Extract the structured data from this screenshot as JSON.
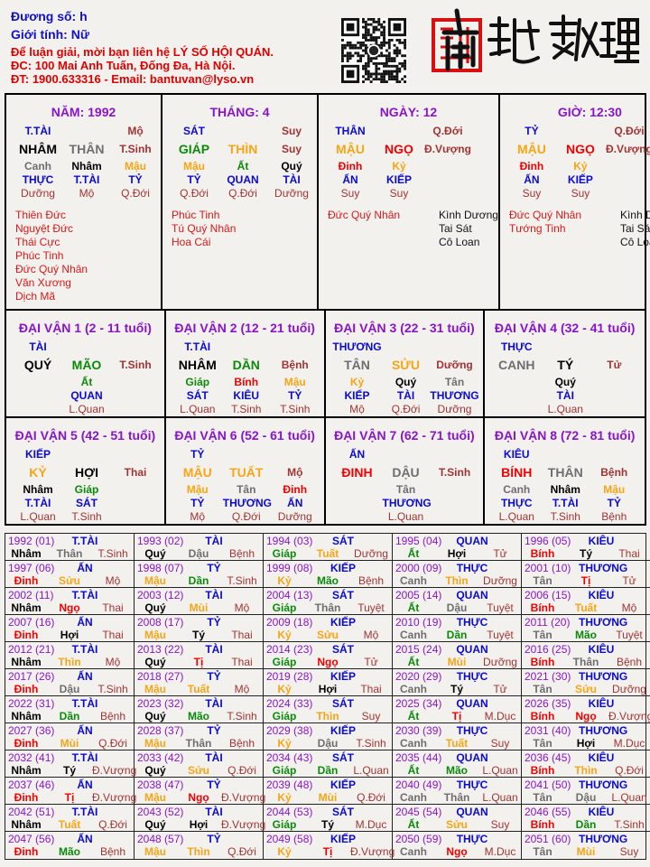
{
  "header": {
    "name_line": "Đương số: h",
    "gender_line": "Giới tính:   Nữ",
    "contact_line1": "Để luận giải, mời bạn liên hệ LÝ SỐ HỘI QUÁN.",
    "contact_line2": "ĐC: 100 Mai Anh Tuấn, Đống Đa, Hà Nội.",
    "contact_line3": "ĐT: 1900.633316 - Email: bantuvan@lyso.vn",
    "logo_text": "南越數理",
    "qr_icon": "qr-code"
  },
  "colors": {
    "title": "#8a14c8",
    "god": "#0a0ad0",
    "state": "#a03434",
    "star_good": "#d81818",
    "star_bad": "#111111"
  },
  "element_of": {
    "Giáp": "wood",
    "Ất": "wood",
    "Dần": "wood",
    "Mão": "wood",
    "Bính": "fire",
    "Đinh": "fire",
    "Tị": "fire",
    "Ngọ": "fire",
    "Mậu": "earth",
    "Kỷ": "earth",
    "Thìn": "earth",
    "Tuất": "earth",
    "Sửu": "earth",
    "Mùi": "earth",
    "Canh": "metal",
    "Tân": "metal",
    "Thân": "metal",
    "Dậu": "metal",
    "Nhâm": "water",
    "Quý": "water",
    "Tý": "water",
    "Hợi": "water"
  },
  "element_colors": {
    "wood": "#0a8a0a",
    "fire": "#f00000",
    "earth": "#f5a516",
    "metal": "#6e6e6e",
    "water": "#000000"
  },
  "pillars": [
    {
      "title": "NĂM: 1992",
      "top_god": "T.TÀI",
      "top_state": "Mộ",
      "stem": "NHÂM",
      "branch": "THÂN",
      "state": "T.Sinh",
      "hidden": [
        {
          "stem": "Canh",
          "god": "THỰC",
          "state": "Dưỡng"
        },
        {
          "stem": "Nhâm",
          "god": "T.TÀI",
          "state": "Mộ"
        },
        {
          "stem": "Mậu",
          "god": "TỶ",
          "state": "Q.Đới"
        }
      ],
      "stars_good": [
        "Thiên Đức",
        "Nguyệt Đức",
        "Thái Cực",
        "Phúc Tinh",
        "Đức Quý Nhân",
        "Văn Xương",
        "Dịch Mã"
      ],
      "stars_bad": []
    },
    {
      "title": "THÁNG: 4",
      "top_god": "SÁT",
      "top_state": "Suy",
      "stem": "GIÁP",
      "branch": "THÌN",
      "state": "Suy",
      "hidden": [
        {
          "stem": "Mậu",
          "god": "TỶ",
          "state": "Q.Đới"
        },
        {
          "stem": "Ất",
          "god": "QUAN",
          "state": "Q.Đới"
        },
        {
          "stem": "Quý",
          "god": "TÀI",
          "state": "Dưỡng"
        }
      ],
      "stars_good": [
        "Phúc Tinh",
        "Tú Quý Nhân",
        "Hoa Cái"
      ],
      "stars_bad": []
    },
    {
      "title": "NGÀY: 12",
      "top_god": "THÂN",
      "top_state": "Q.Đới",
      "stem": "MẬU",
      "branch": "NGỌ",
      "state": "Đ.Vượng",
      "hidden": [
        {
          "stem": "Đinh",
          "god": "ẤN",
          "state": "Suy"
        },
        {
          "stem": "Kỷ",
          "god": "KIẾP",
          "state": "Suy"
        },
        null
      ],
      "stars_good": [
        "Đức Quý Nhân"
      ],
      "stars_bad": [
        "Kình Dương",
        "Tai Sát",
        "Cô Loan"
      ]
    },
    {
      "title": "GIỜ: 12:30",
      "top_god": "TỶ",
      "top_state": "Q.Đới",
      "stem": "MẬU",
      "branch": "NGỌ",
      "state": "Đ.Vượng",
      "hidden": [
        {
          "stem": "Đinh",
          "god": "ẤN",
          "state": "Suy"
        },
        {
          "stem": "Kỷ",
          "god": "KIẾP",
          "state": "Suy"
        },
        null
      ],
      "stars_good": [
        "Đức Quý Nhân",
        "Tướng Tinh"
      ],
      "stars_bad": [
        "Kình Dương",
        "Tai Sát",
        "Cô Loan"
      ]
    }
  ],
  "dai_van": [
    {
      "title": "ĐẠI VẬN 1 (2 - 11 tuổi)",
      "top_god": "TÀI",
      "stem": "QUÝ",
      "branch": "MÃO",
      "state": "T.Sinh",
      "hidden": [
        null,
        {
          "stem": "Ất",
          "god": "QUAN",
          "state": "L.Quan"
        },
        null
      ]
    },
    {
      "title": "ĐẠI VẬN 2 (12 - 21 tuổi)",
      "top_god": "T.TÀI",
      "stem": "NHÂM",
      "branch": "DẦN",
      "state": "Bệnh",
      "hidden": [
        {
          "stem": "Giáp",
          "god": "SÁT",
          "state": "L.Quan"
        },
        {
          "stem": "Bính",
          "god": "KIÊU",
          "state": "T.Sinh"
        },
        {
          "stem": "Mậu",
          "god": "TỶ",
          "state": "T.Sinh"
        }
      ]
    },
    {
      "title": "ĐẠI VẬN 3 (22 - 31 tuổi)",
      "top_god": "THƯƠNG",
      "stem": "TÂN",
      "branch": "SỬU",
      "state": "Dưỡng",
      "hidden": [
        {
          "stem": "Kỷ",
          "god": "KIẾP",
          "state": "Mộ"
        },
        {
          "stem": "Quý",
          "god": "TÀI",
          "state": "Q.Đới"
        },
        {
          "stem": "Tân",
          "god": "THƯƠNG",
          "state": "Dưỡng"
        }
      ]
    },
    {
      "title": "ĐẠI VẬN 4 (32 - 41 tuổi)",
      "top_god": "THỰC",
      "stem": "CANH",
      "branch": "TÝ",
      "state": "Tử",
      "hidden": [
        null,
        {
          "stem": "Quý",
          "god": "TÀI",
          "state": "L.Quan"
        },
        null
      ]
    },
    {
      "title": "ĐẠI VẬN 5 (42 - 51 tuổi)",
      "top_god": "KIẾP",
      "stem": "KỶ",
      "branch": "HỢI",
      "state": "Thai",
      "hidden": [
        {
          "stem": "Nhâm",
          "god": "T.TÀI",
          "state": "L.Quan"
        },
        {
          "stem": "Giáp",
          "god": "SÁT",
          "state": "T.Sinh"
        },
        null
      ]
    },
    {
      "title": "ĐẠI VẬN 6 (52 - 61 tuổi)",
      "top_god": "TỶ",
      "stem": "MẬU",
      "branch": "TUẤT",
      "state": "Mộ",
      "hidden": [
        {
          "stem": "Mậu",
          "god": "TỶ",
          "state": "Mộ"
        },
        {
          "stem": "Tân",
          "god": "THƯƠNG",
          "state": "Q.Đới"
        },
        {
          "stem": "Đinh",
          "god": "ẤN",
          "state": "Dưỡng"
        }
      ]
    },
    {
      "title": "ĐẠI VẬN 7 (62 - 71 tuổi)",
      "top_god": "ẤN",
      "stem": "ĐINH",
      "branch": "DẬU",
      "state": "T.Sinh",
      "hidden": [
        null,
        {
          "stem": "Tân",
          "god": "THƯƠNG",
          "state": "L.Quan"
        },
        null
      ]
    },
    {
      "title": "ĐẠI VẬN 8 (72 - 81 tuổi)",
      "top_god": "KIÊU",
      "stem": "BÍNH",
      "branch": "THÂN",
      "state": "Bệnh",
      "hidden": [
        {
          "stem": "Canh",
          "god": "THỰC",
          "state": "L.Quan"
        },
        {
          "stem": "Nhâm",
          "god": "T.TÀI",
          "state": "T.Sinh"
        },
        {
          "stem": "Mậu",
          "god": "TỶ",
          "state": "Bệnh"
        }
      ]
    }
  ],
  "years": [
    {
      "y": "1992 (01)",
      "g": "T.TÀI",
      "s": "Nhâm",
      "b": "Thân",
      "st": "T.Sinh"
    },
    {
      "y": "1993 (02)",
      "g": "TÀI",
      "s": "Quý",
      "b": "Dậu",
      "st": "Bệnh"
    },
    {
      "y": "1994 (03)",
      "g": "SÁT",
      "s": "Giáp",
      "b": "Tuất",
      "st": "Dưỡng"
    },
    {
      "y": "1995 (04)",
      "g": "QUAN",
      "s": "Ất",
      "b": "Hợi",
      "st": "Tử"
    },
    {
      "y": "1996 (05)",
      "g": "KIÊU",
      "s": "Bính",
      "b": "Tý",
      "st": "Thai"
    },
    {
      "y": "1997 (06)",
      "g": "ẤN",
      "s": "Đinh",
      "b": "Sửu",
      "st": "Mộ"
    },
    {
      "y": "1998 (07)",
      "g": "TỶ",
      "s": "Mậu",
      "b": "Dần",
      "st": "T.Sinh"
    },
    {
      "y": "1999 (08)",
      "g": "KIẾP",
      "s": "Kỷ",
      "b": "Mão",
      "st": "Bệnh"
    },
    {
      "y": "2000 (09)",
      "g": "THỰC",
      "s": "Canh",
      "b": "Thìn",
      "st": "Dưỡng"
    },
    {
      "y": "2001 (10)",
      "g": "THƯƠNG",
      "s": "Tân",
      "b": "Tị",
      "st": "Tử"
    },
    {
      "y": "2002 (11)",
      "g": "T.TÀI",
      "s": "Nhâm",
      "b": "Ngọ",
      "st": "Thai"
    },
    {
      "y": "2003 (12)",
      "g": "TÀI",
      "s": "Quý",
      "b": "Mùi",
      "st": "Mộ"
    },
    {
      "y": "2004 (13)",
      "g": "SÁT",
      "s": "Giáp",
      "b": "Thân",
      "st": "Tuyệt"
    },
    {
      "y": "2005 (14)",
      "g": "QUAN",
      "s": "Ất",
      "b": "Dậu",
      "st": "Tuyệt"
    },
    {
      "y": "2006 (15)",
      "g": "KIÊU",
      "s": "Bính",
      "b": "Tuất",
      "st": "Mộ"
    },
    {
      "y": "2007 (16)",
      "g": "ẤN",
      "s": "Đinh",
      "b": "Hợi",
      "st": "Thai"
    },
    {
      "y": "2008 (17)",
      "g": "TỶ",
      "s": "Mậu",
      "b": "Tý",
      "st": "Thai"
    },
    {
      "y": "2009 (18)",
      "g": "KIẾP",
      "s": "Kỷ",
      "b": "Sửu",
      "st": "Mộ"
    },
    {
      "y": "2010 (19)",
      "g": "THỰC",
      "s": "Canh",
      "b": "Dần",
      "st": "Tuyệt"
    },
    {
      "y": "2011 (20)",
      "g": "THƯƠNG",
      "s": "Tân",
      "b": "Mão",
      "st": "Tuyệt"
    },
    {
      "y": "2012 (21)",
      "g": "T.TÀI",
      "s": "Nhâm",
      "b": "Thìn",
      "st": "Mộ"
    },
    {
      "y": "2013 (22)",
      "g": "TÀI",
      "s": "Quý",
      "b": "Tị",
      "st": "Thai"
    },
    {
      "y": "2014 (23)",
      "g": "SÁT",
      "s": "Giáp",
      "b": "Ngọ",
      "st": "Tử"
    },
    {
      "y": "2015 (24)",
      "g": "QUAN",
      "s": "Ất",
      "b": "Mùi",
      "st": "Dưỡng"
    },
    {
      "y": "2016 (25)",
      "g": "KIÊU",
      "s": "Bính",
      "b": "Thân",
      "st": "Bệnh"
    },
    {
      "y": "2017 (26)",
      "g": "ẤN",
      "s": "Đinh",
      "b": "Dậu",
      "st": "T.Sinh"
    },
    {
      "y": "2018 (27)",
      "g": "TỶ",
      "s": "Mậu",
      "b": "Tuất",
      "st": "Mộ"
    },
    {
      "y": "2019 (28)",
      "g": "KIẾP",
      "s": "Kỷ",
      "b": "Hợi",
      "st": "Thai"
    },
    {
      "y": "2020 (29)",
      "g": "THỰC",
      "s": "Canh",
      "b": "Tý",
      "st": "Tử"
    },
    {
      "y": "2021 (30)",
      "g": "THƯƠNG",
      "s": "Tân",
      "b": "Sửu",
      "st": "Dưỡng"
    },
    {
      "y": "2022 (31)",
      "g": "T.TÀI",
      "s": "Nhâm",
      "b": "Dần",
      "st": "Bệnh"
    },
    {
      "y": "2023 (32)",
      "g": "TÀI",
      "s": "Quý",
      "b": "Mão",
      "st": "T.Sinh"
    },
    {
      "y": "2024 (33)",
      "g": "SÁT",
      "s": "Giáp",
      "b": "Thìn",
      "st": "Suy"
    },
    {
      "y": "2025 (34)",
      "g": "QUAN",
      "s": "Ất",
      "b": "Tị",
      "st": "M.Dục"
    },
    {
      "y": "2026 (35)",
      "g": "KIÊU",
      "s": "Bính",
      "b": "Ngọ",
      "st": "Đ.Vượng"
    },
    {
      "y": "2027 (36)",
      "g": "ẤN",
      "s": "Đinh",
      "b": "Mùi",
      "st": "Q.Đới"
    },
    {
      "y": "2028 (37)",
      "g": "TỶ",
      "s": "Mậu",
      "b": "Thân",
      "st": "Bệnh"
    },
    {
      "y": "2029 (38)",
      "g": "KIẾP",
      "s": "Kỷ",
      "b": "Dậu",
      "st": "T.Sinh"
    },
    {
      "y": "2030 (39)",
      "g": "THỰC",
      "s": "Canh",
      "b": "Tuất",
      "st": "Suy"
    },
    {
      "y": "2031 (40)",
      "g": "THƯƠNG",
      "s": "Tân",
      "b": "Hợi",
      "st": "M.Dục"
    },
    {
      "y": "2032 (41)",
      "g": "T.TÀI",
      "s": "Nhâm",
      "b": "Tý",
      "st": "Đ.Vượng"
    },
    {
      "y": "2033 (42)",
      "g": "TÀI",
      "s": "Quý",
      "b": "Sửu",
      "st": "Q.Đới"
    },
    {
      "y": "2034 (43)",
      "g": "SÁT",
      "s": "Giáp",
      "b": "Dần",
      "st": "L.Quan"
    },
    {
      "y": "2035 (44)",
      "g": "QUAN",
      "s": "Ất",
      "b": "Mão",
      "st": "L.Quan"
    },
    {
      "y": "2036 (45)",
      "g": "KIÊU",
      "s": "Bính",
      "b": "Thìn",
      "st": "Q.Đới"
    },
    {
      "y": "2037 (46)",
      "g": "ẤN",
      "s": "Đinh",
      "b": "Tị",
      "st": "Đ.Vượng"
    },
    {
      "y": "2038 (47)",
      "g": "TỶ",
      "s": "Mậu",
      "b": "Ngọ",
      "st": "Đ.Vượng"
    },
    {
      "y": "2039 (48)",
      "g": "KIẾP",
      "s": "Kỷ",
      "b": "Mùi",
      "st": "Q.Đới"
    },
    {
      "y": "2040 (49)",
      "g": "THỰC",
      "s": "Canh",
      "b": "Thân",
      "st": "L.Quan"
    },
    {
      "y": "2041 (50)",
      "g": "THƯƠNG",
      "s": "Tân",
      "b": "Dậu",
      "st": "L.Quan"
    },
    {
      "y": "2042 (51)",
      "g": "T.TÀI",
      "s": "Nhâm",
      "b": "Tuất",
      "st": "Q.Đới"
    },
    {
      "y": "2043 (52)",
      "g": "TÀI",
      "s": "Quý",
      "b": "Hợi",
      "st": "Đ.Vượng"
    },
    {
      "y": "2044 (53)",
      "g": "SÁT",
      "s": "Giáp",
      "b": "Tý",
      "st": "M.Dục"
    },
    {
      "y": "2045 (54)",
      "g": "QUAN",
      "s": "Ất",
      "b": "Sửu",
      "st": "Suy"
    },
    {
      "y": "2046 (55)",
      "g": "KIÊU",
      "s": "Bính",
      "b": "Dần",
      "st": "T.Sinh"
    },
    {
      "y": "2047 (56)",
      "g": "ẤN",
      "s": "Đinh",
      "b": "Mão",
      "st": "Bệnh"
    },
    {
      "y": "2048 (57)",
      "g": "TỶ",
      "s": "Mậu",
      "b": "Thìn",
      "st": "Q.Đới"
    },
    {
      "y": "2049 (58)",
      "g": "KIẾP",
      "s": "Kỷ",
      "b": "Tị",
      "st": "Đ.Vượng"
    },
    {
      "y": "2050 (59)",
      "g": "THỰC",
      "s": "Canh",
      "b": "Ngọ",
      "st": "M.Dục"
    },
    {
      "y": "2051 (60)",
      "g": "THƯƠNG",
      "s": "Tân",
      "b": "Mùi",
      "st": "Suy"
    }
  ]
}
